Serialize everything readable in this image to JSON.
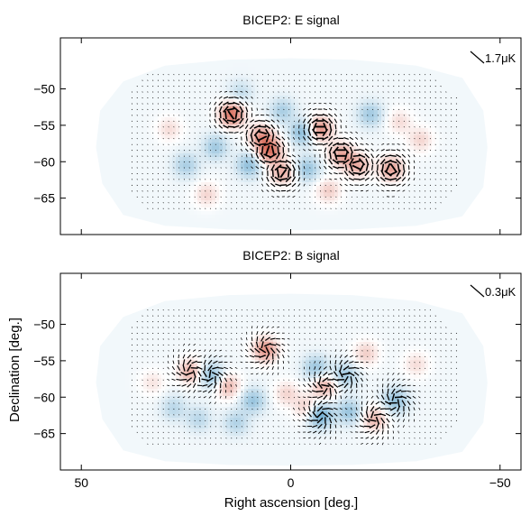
{
  "chart_data": [
    {
      "type": "heatmap",
      "title": "BICEP2: E signal",
      "xlabel": "",
      "ylabel": "",
      "xlim": [
        55,
        -55
      ],
      "ylim": [
        -70,
        -43
      ],
      "x_ticks": [
        50,
        0,
        -50
      ],
      "x_tick_labels": [
        "",
        "",
        ""
      ],
      "y_ticks": [
        -50,
        -55,
        -60,
        -65
      ],
      "y_tick_labels": [
        "−50",
        "−55",
        "−60",
        "−65"
      ],
      "scale_label": "1.7μK",
      "colormap": {
        "positive": "#d6604d",
        "negative": "#4393c3",
        "zero": "#ffffff"
      },
      "blobs": [
        {
          "ra": 14,
          "dec": -53.5,
          "amp": 1.0
        },
        {
          "ra": 7,
          "dec": -56.5,
          "amp": 0.7
        },
        {
          "ra": 5,
          "dec": -58.5,
          "amp": 0.95
        },
        {
          "ra": -3,
          "dec": -56,
          "amp": -0.7
        },
        {
          "ra": -7,
          "dec": -55.5,
          "amp": 0.85
        },
        {
          "ra": -12,
          "dec": -59,
          "amp": 0.65
        },
        {
          "ra": -16,
          "dec": -60.5,
          "amp": 0.6
        },
        {
          "ra": -24,
          "dec": -61,
          "amp": 0.7
        },
        {
          "ra": 2,
          "dec": -61.5,
          "amp": 0.6
        },
        {
          "ra": 10,
          "dec": -60.5,
          "amp": -0.6
        },
        {
          "ra": -4,
          "dec": -61,
          "amp": -0.55
        },
        {
          "ra": 18,
          "dec": -58,
          "amp": -0.5
        },
        {
          "ra": 25,
          "dec": -60.5,
          "amp": -0.45
        },
        {
          "ra": -19,
          "dec": -53.5,
          "amp": -0.5
        },
        {
          "ra": 29,
          "dec": -55.5,
          "amp": 0.3
        },
        {
          "ra": -31,
          "dec": -57,
          "amp": 0.35
        },
        {
          "ra": 20,
          "dec": -64.5,
          "amp": 0.35
        },
        {
          "ra": -9,
          "dec": -64,
          "amp": 0.4
        },
        {
          "ra": 2,
          "dec": -53,
          "amp": -0.45
        },
        {
          "ra": -26,
          "dec": -54.5,
          "amp": 0.3
        },
        {
          "ra": 12,
          "dec": -50.5,
          "amp": -0.3
        }
      ],
      "series": [
        {
          "values": [
            {
              "ra": 14,
              "dec": -53.5
            },
            {
              "ra": 5,
              "dec": -58.5
            },
            {
              "ra": -7,
              "dec": -55.5
            },
            {
              "ra": -12,
              "dec": -59
            },
            {
              "ra": -24,
              "dec": -61
            },
            {
              "ra": 2,
              "dec": -61.5
            },
            {
              "ra": -16,
              "dec": -60.5
            },
            {
              "ra": 7,
              "dec": -56.5
            }
          ]
        }
      ]
    },
    {
      "type": "heatmap",
      "title": "BICEP2: B signal",
      "xlabel": "Right ascension [deg.]",
      "ylabel": "Declination [deg.]",
      "xlim": [
        55,
        -55
      ],
      "ylim": [
        -70,
        -43
      ],
      "x_ticks": [
        50,
        0,
        -50
      ],
      "x_tick_labels": [
        "50",
        "0",
        "−50"
      ],
      "y_ticks": [
        -50,
        -55,
        -60,
        -65
      ],
      "y_tick_labels": [
        "−50",
        "−55",
        "−60",
        "−65"
      ],
      "scale_label": "0.3μK",
      "colormap": {
        "positive": "#d6604d",
        "negative": "#4393c3",
        "zero": "#ffffff"
      },
      "blobs": [
        {
          "ra": 6,
          "dec": -53.5,
          "amp": 0.8
        },
        {
          "ra": 19,
          "dec": -57,
          "amp": -0.6
        },
        {
          "ra": 24,
          "dec": -56.5,
          "amp": 0.6
        },
        {
          "ra": 15,
          "dec": -58.5,
          "amp": 0.55
        },
        {
          "ra": 9,
          "dec": -60.5,
          "amp": -0.55
        },
        {
          "ra": -6,
          "dec": -56,
          "amp": -0.55
        },
        {
          "ra": -8,
          "dec": -58.5,
          "amp": 0.6
        },
        {
          "ra": -13,
          "dec": -57,
          "amp": -0.5
        },
        {
          "ra": -7,
          "dec": -62.5,
          "amp": -0.85
        },
        {
          "ra": -14,
          "dec": -62,
          "amp": -0.55
        },
        {
          "ra": -20,
          "dec": -63,
          "amp": 0.55
        },
        {
          "ra": -25,
          "dec": -60.5,
          "amp": -0.6
        },
        {
          "ra": -4,
          "dec": -61.5,
          "amp": 0.45
        },
        {
          "ra": 13,
          "dec": -63.5,
          "amp": -0.4
        },
        {
          "ra": 22,
          "dec": -63,
          "amp": -0.35
        },
        {
          "ra": 1,
          "dec": -59.5,
          "amp": 0.35
        },
        {
          "ra": -18,
          "dec": -54,
          "amp": 0.4
        },
        {
          "ra": 28,
          "dec": -61.5,
          "amp": -0.35
        },
        {
          "ra": -30,
          "dec": -55.5,
          "amp": 0.3
        },
        {
          "ra": 33,
          "dec": -58,
          "amp": 0.25
        }
      ],
      "series": [
        {
          "values": [
            {
              "ra": 6,
              "dec": -53.5
            },
            {
              "ra": 19,
              "dec": -57
            },
            {
              "ra": -8,
              "dec": -58.5
            },
            {
              "ra": -7,
              "dec": -62.5
            },
            {
              "ra": -20,
              "dec": -63
            },
            {
              "ra": -25,
              "dec": -60.5
            },
            {
              "ra": 24,
              "dec": -56.5
            },
            {
              "ra": -13,
              "dec": -57
            }
          ]
        }
      ]
    }
  ]
}
